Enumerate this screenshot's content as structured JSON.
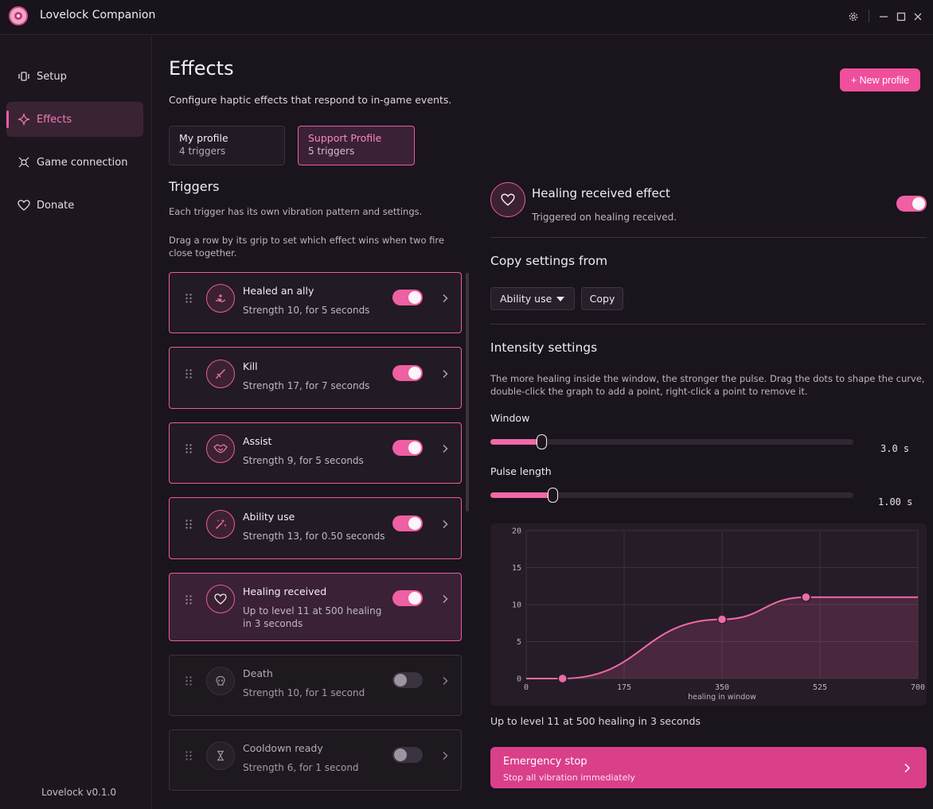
{
  "app": {
    "title": "Lovelock Companion"
  },
  "sidebar": {
    "items": [
      {
        "label": "Setup",
        "icon": "vibration-icon"
      },
      {
        "label": "Effects",
        "icon": "sparkle-icon"
      },
      {
        "label": "Game connection",
        "icon": "crosshair-icon"
      },
      {
        "label": "Donate",
        "icon": "heart-icon"
      }
    ],
    "active": "Effects",
    "version": "Lovelock v0.1.0"
  },
  "header": {
    "title": "Effects",
    "subtitle": "Configure haptic effects that respond to in-game events.",
    "new_profile": "+ New profile"
  },
  "profiles": [
    {
      "name": "My profile",
      "count": "4 triggers",
      "active": false
    },
    {
      "name": "Support Profile",
      "count": "5 triggers",
      "active": true
    }
  ],
  "triggers": {
    "title": "Triggers",
    "desc1": "Each trigger has its own vibration pattern and settings.",
    "desc2": "Drag a row by its grip to set which effect wins when two fire close together.",
    "items": [
      {
        "name": "Healed an ally",
        "desc": "Strength 10, for 5 seconds",
        "enabled": true,
        "icon": "healing-hands-icon"
      },
      {
        "name": "Kill",
        "desc": "Strength 17, for 7 seconds",
        "enabled": true,
        "icon": "sword-icon"
      },
      {
        "name": "Assist",
        "desc": "Strength 9, for 5 seconds",
        "enabled": true,
        "icon": "handshake-icon"
      },
      {
        "name": "Ability use",
        "desc": "Strength 13, for 0.50 seconds",
        "enabled": true,
        "icon": "magic-wand-icon"
      },
      {
        "name": "Healing received",
        "desc": "Up to level 11 at 500 healing in 3 seconds",
        "enabled": true,
        "selected": true,
        "icon": "heart-icon"
      },
      {
        "name": "Death",
        "desc": "Strength 10, for 1 second",
        "enabled": false,
        "icon": "skull-icon"
      },
      {
        "name": "Cooldown ready",
        "desc": "Strength 6, for 1 second",
        "enabled": false,
        "icon": "hourglass-icon"
      }
    ]
  },
  "effect": {
    "title": "Healing received effect",
    "subtitle": "Triggered on healing received.",
    "enabled": true,
    "copy_title": "Copy settings from",
    "copy_source": "Ability use",
    "copy_button": "Copy",
    "intensity_title": "Intensity settings",
    "intensity_desc": "The more healing inside the window, the stronger the pulse. Drag the dots to shape the curve, double-click the graph to add a point, right-click a point to remove it.",
    "window": {
      "label": "Window",
      "value": "3.0 s",
      "fraction": 0.14
    },
    "pulse": {
      "label": "Pulse length",
      "value": "1.00 s",
      "fraction": 0.17
    },
    "curve_summary": "Up to level 11 at 500 healing in 3 seconds"
  },
  "emergency": {
    "title": "Emergency stop",
    "subtitle": "Stop all vibration immediately"
  },
  "colors": {
    "accent": "#ef5fa3",
    "background": "#1a141c",
    "card": "#221a24"
  },
  "chart_data": {
    "type": "area",
    "xlabel": "healing in window",
    "ylabel": "",
    "xlim": [
      0,
      700
    ],
    "ylim": [
      0,
      20
    ],
    "x_ticks": [
      "0",
      "175",
      "350",
      "525",
      "700"
    ],
    "y_ticks": [
      "0",
      "5",
      "10",
      "15",
      "20"
    ],
    "grid": true,
    "points": [
      {
        "x": 0,
        "y": 0
      },
      {
        "x": 65,
        "y": 0
      },
      {
        "x": 350,
        "y": 8
      },
      {
        "x": 500,
        "y": 11
      },
      {
        "x": 700,
        "y": 11
      }
    ],
    "control_points": [
      {
        "x": 65,
        "y": 0
      },
      {
        "x": 350,
        "y": 8
      },
      {
        "x": 500,
        "y": 11
      }
    ]
  }
}
